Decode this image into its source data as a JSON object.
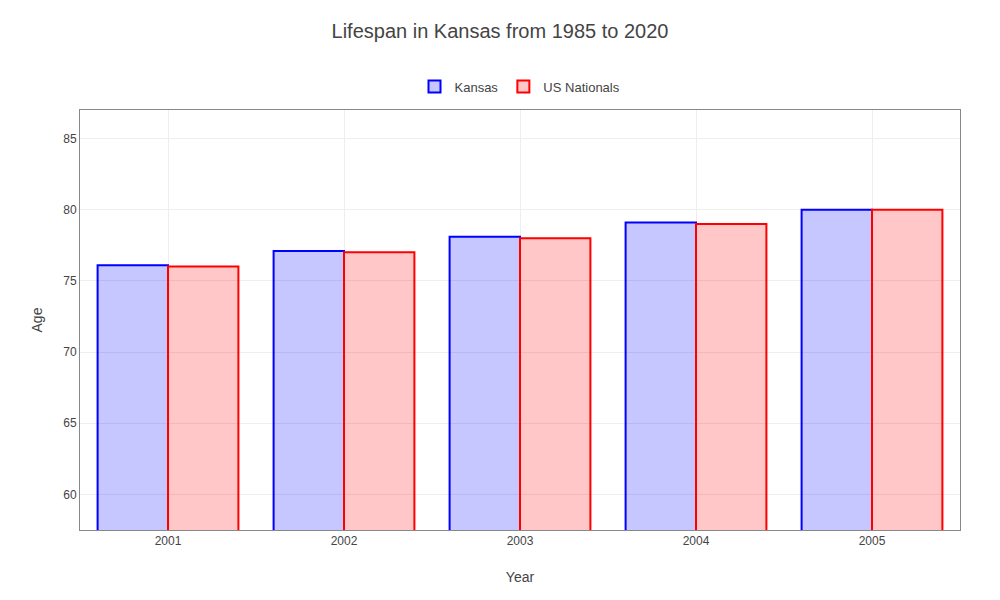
{
  "chart_data": {
    "type": "bar",
    "title": "Lifespan in Kansas from 1985 to 2020",
    "xlabel": "Year",
    "ylabel": "Age",
    "categories": [
      "2001",
      "2002",
      "2003",
      "2004",
      "2005"
    ],
    "series": [
      {
        "name": "Kansas",
        "color": "#0000ff",
        "values": [
          76.1,
          77.1,
          78.1,
          79.1,
          80.0
        ]
      },
      {
        "name": "US Nationals",
        "color": "#ff0000",
        "values": [
          76.0,
          77.0,
          78.0,
          79.0,
          80.0
        ]
      }
    ],
    "ylim": [
      57.5,
      87
    ],
    "yticks": [
      60,
      65,
      70,
      75,
      80,
      85
    ],
    "grid": true,
    "legend": "top"
  }
}
